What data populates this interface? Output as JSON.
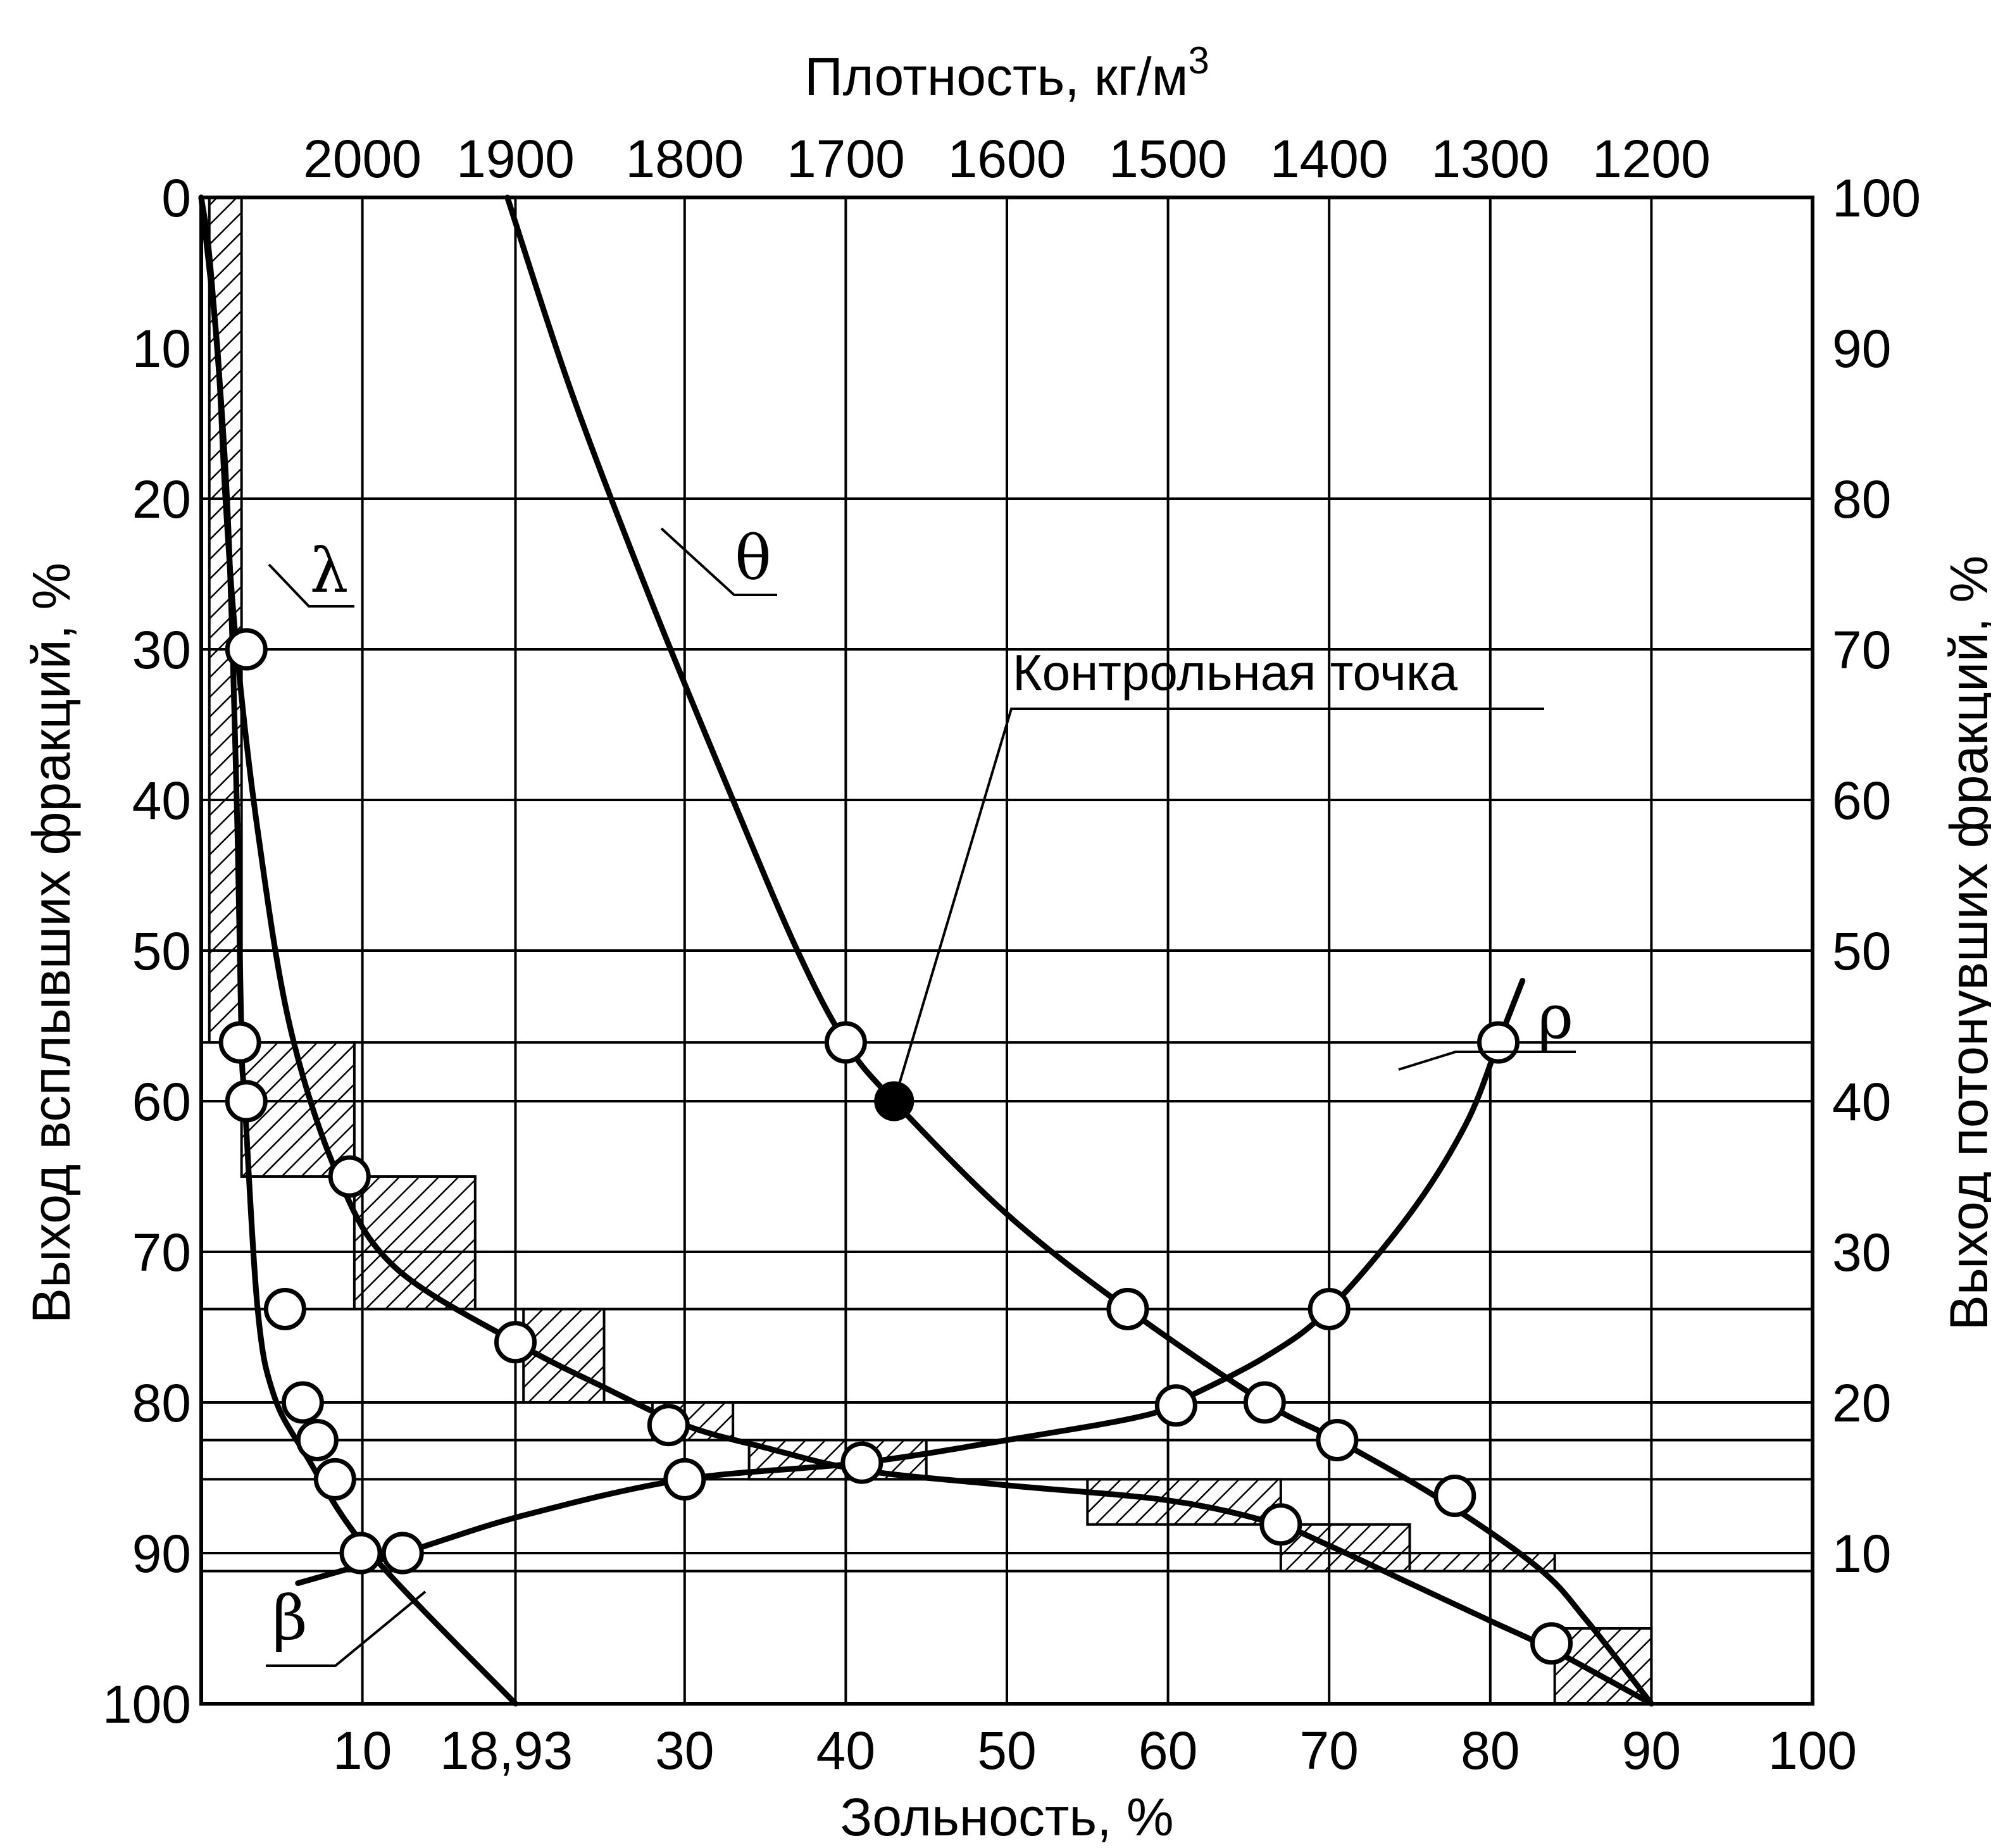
{
  "chart_data": {
    "type": "line",
    "title": "",
    "xlabel": "Зольность, %",
    "x2label": "Плотность, кг/м3",
    "ylabel": "Выход всплывших фракций, %",
    "y2label": "Выход потонувших фракций, %",
    "xlim": [
      0,
      100
    ],
    "ylim": [
      0,
      100
    ],
    "y_inverted": true,
    "y2lim": [
      0,
      100
    ],
    "grid": true,
    "x_ticks": [
      "10",
      "18,93",
      "30",
      "40",
      "50",
      "60",
      "70",
      "80",
      "90",
      "100"
    ],
    "x_tick_values": [
      10,
      18.93,
      30,
      40,
      50,
      60,
      70,
      80,
      90,
      100
    ],
    "x2_ticks": [
      "2000",
      "1900",
      "1800",
      "1700",
      "1600",
      "1500",
      "1400",
      "1300",
      "1200"
    ],
    "x2_tick_positions": [
      10,
      19.5,
      30,
      40,
      50,
      60,
      70,
      80,
      90
    ],
    "y_ticks": [
      "0",
      "10",
      "20",
      "30",
      "40",
      "50",
      "60",
      "70",
      "80",
      "90",
      "100"
    ],
    "y2_ticks": [
      "100",
      "90",
      "80",
      "70",
      "60",
      "50",
      "40",
      "30",
      "20",
      "10"
    ],
    "horizontal_grid_y": [
      0,
      20,
      30,
      40,
      50,
      56.1,
      60,
      70,
      73.8,
      80,
      82.5,
      85.1,
      90,
      91.2,
      100
    ],
    "vertical_grid_x": [
      10,
      19.5,
      30,
      40,
      50,
      60,
      70,
      80,
      90
    ],
    "series": [
      {
        "name": "λ",
        "x": [
          0,
          1,
          1.5,
          2.2,
          3.5,
          5.5,
          8.5,
          12,
          19.5,
          25,
          30,
          35,
          41,
          50,
          60,
          66.5,
          70,
          75,
          80,
          84,
          90
        ],
        "y": [
          0,
          10,
          20,
          30,
          42,
          55,
          65,
          71,
          76,
          79,
          81.5,
          83,
          84.5,
          85.5,
          86.5,
          88,
          89.5,
          92,
          94.5,
          96.5,
          100
        ],
        "markers": [
          [
            2.8,
            30
          ],
          [
            9.2,
            65
          ],
          [
            19.5,
            76
          ],
          [
            29,
            81.5
          ],
          [
            41,
            84
          ],
          [
            67,
            88.1
          ],
          [
            83.8,
            96
          ]
        ],
        "marker_style": "open"
      },
      {
        "name": "θ",
        "x": [
          19,
          23,
          28,
          33,
          37,
          40,
          43,
          50,
          57.5,
          66,
          70.5,
          77,
          83,
          86,
          90
        ],
        "y": [
          0,
          13,
          27,
          40,
          50,
          56.1,
          60,
          67.5,
          73.8,
          80,
          82.5,
          86.5,
          91,
          94.5,
          100
        ],
        "markers": [
          [
            40,
            56.1
          ],
          [
            57.5,
            73.8
          ],
          [
            66,
            80
          ],
          [
            70.5,
            82.5
          ],
          [
            77.8,
            86.2
          ]
        ],
        "marker_style": "open"
      },
      {
        "name": "ρ",
        "x": [
          19.5,
          10.5,
          6.5,
          4.5,
          3.5,
          2.7,
          2.5,
          2.2,
          1.6,
          0.6,
          0
        ],
        "y": [
          100,
          90,
          83.5,
          79.5,
          73.8,
          60,
          56.1,
          40,
          20,
          5,
          0
        ],
        "markers": [
          [
            2.4,
            56.1
          ],
          [
            2.8,
            60
          ],
          [
            5.2,
            73.8
          ],
          [
            6.3,
            80
          ],
          [
            7.2,
            82.5
          ],
          [
            8.3,
            85.1
          ],
          [
            9.9,
            90
          ]
        ],
        "marker_style": "open"
      },
      {
        "name": "β",
        "x": [
          6,
          12.5,
          20,
          30,
          41,
          50,
          58,
          60.5,
          66,
          70,
          75,
          78.5,
          80.5,
          82
        ],
        "y": [
          92,
          90,
          87.5,
          85.1,
          84,
          82.5,
          81,
          80,
          77,
          73.8,
          67.5,
          61.5,
          56.1,
          52
        ],
        "markers": [
          [
            12.5,
            90
          ],
          [
            30,
            85.1
          ],
          [
            60.5,
            80.2
          ],
          [
            70,
            73.8
          ],
          [
            80.5,
            56.1
          ]
        ],
        "marker_style": "open"
      }
    ],
    "hatched_steps": [
      {
        "x": [
          0.5,
          2.5
        ],
        "y": [
          0,
          56.1
        ]
      },
      {
        "x": [
          2.5,
          9.5
        ],
        "y": [
          56.1,
          65
        ]
      },
      {
        "x": [
          9.5,
          17
        ],
        "y": [
          65,
          73.8
        ]
      },
      {
        "x": [
          20,
          25
        ],
        "y": [
          73.8,
          80
        ]
      },
      {
        "x": [
          28,
          33
        ],
        "y": [
          80,
          82.5
        ]
      },
      {
        "x": [
          34,
          45
        ],
        "y": [
          82.5,
          85.1
        ]
      },
      {
        "x": [
          55,
          67
        ],
        "y": [
          85.1,
          88.1
        ]
      },
      {
        "x": [
          67,
          75
        ],
        "y": [
          88.1,
          91.2
        ]
      },
      {
        "x": [
          75,
          84
        ],
        "y": [
          90,
          91.2
        ]
      },
      {
        "x": [
          84,
          90
        ],
        "y": [
          95,
          100
        ]
      }
    ],
    "annotations": [
      {
        "text": "Контрольная точка",
        "x": 43,
        "y": 60,
        "marker": "filled"
      },
      {
        "text": "λ",
        "series": "λ"
      },
      {
        "text": "θ",
        "series": "θ"
      },
      {
        "text": "ρ",
        "series": "ρ"
      },
      {
        "text": "β",
        "series": "β"
      }
    ]
  }
}
